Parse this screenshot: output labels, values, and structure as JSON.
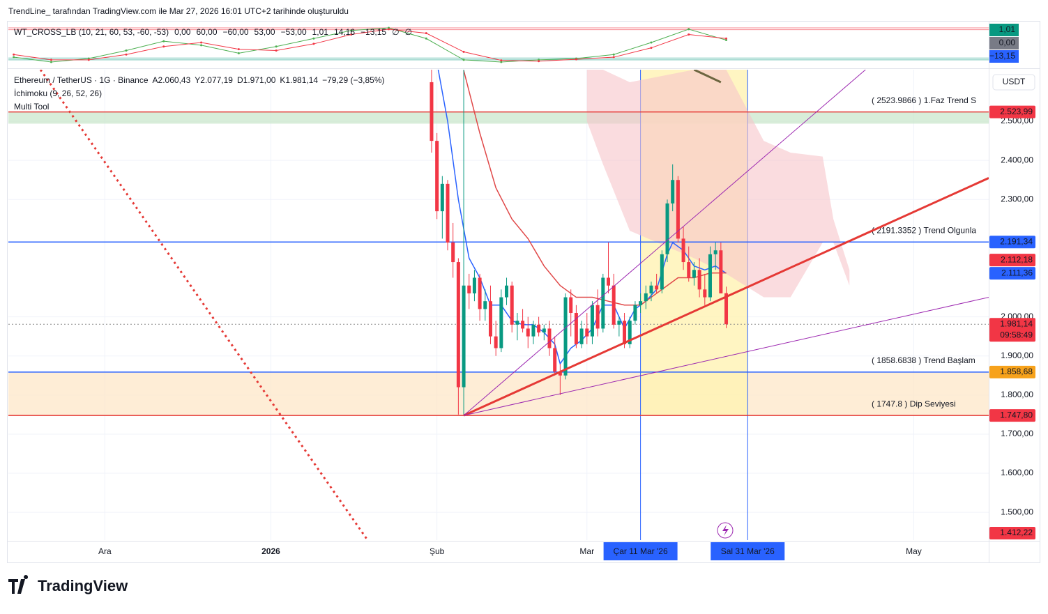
{
  "page": {
    "caption": "TrendLine_  tarafından TradingView.com ile Mar 27, 2026 16:01 UTC+2 tarihinde oluşturuldu",
    "brand": "TradingView",
    "currency": "USDT"
  },
  "chart_data": {
    "type": "candlestick",
    "legend": {
      "symbol": "Ethereum / TetherUS · 1G · Binance",
      "open": "A2.060,43",
      "high": "Y2.077,19",
      "low": "D1.971,00",
      "close": "K1.981,14",
      "change": "−79,29 (−3,85%)",
      "indicators": [
        "İchimoku (9, 26, 52, 26)",
        "Multi Tool"
      ]
    },
    "xlim": [
      "2025-11-13",
      "2026-05-15"
    ],
    "xticks": [
      {
        "value": "2025-12-01",
        "label": "Ara"
      },
      {
        "value": "2026-01-01",
        "label": "2026"
      },
      {
        "value": "2026-02-01",
        "label": "Şub"
      },
      {
        "value": "2026-03-01",
        "label": "Mar"
      },
      {
        "value": "2026-05-01",
        "label": "May"
      }
    ],
    "ylim": [
      1429,
      2632
    ],
    "yticks": [
      {
        "value": 2500,
        "label": "2.500,00"
      },
      {
        "value": 2400,
        "label": "2.400,00"
      },
      {
        "value": 2300,
        "label": "2.300,00"
      },
      {
        "value": 2000,
        "label": "2.000,00"
      },
      {
        "value": 1900,
        "label": "1.900,00"
      },
      {
        "value": 1800,
        "label": "1.800,00"
      },
      {
        "value": 1700,
        "label": "1.700,00"
      },
      {
        "value": 1600,
        "label": "1.600,00"
      },
      {
        "value": 1500,
        "label": "1.500,00"
      }
    ],
    "grid": true,
    "up_color": "#089981",
    "down_color": "#f23645",
    "x": [
      "2026-01-31",
      "2026-02-01",
      "2026-02-02",
      "2026-02-03",
      "2026-02-04",
      "2026-02-05",
      "2026-02-06",
      "2026-02-07",
      "2026-02-08",
      "2026-02-09",
      "2026-02-10",
      "2026-02-11",
      "2026-02-12",
      "2026-02-13",
      "2026-02-14",
      "2026-02-15",
      "2026-02-16",
      "2026-02-17",
      "2026-02-18",
      "2026-02-19",
      "2026-02-20",
      "2026-02-21",
      "2026-02-22",
      "2026-02-23",
      "2026-02-24",
      "2026-02-25",
      "2026-02-26",
      "2026-02-27",
      "2026-02-28",
      "2026-03-01",
      "2026-03-02",
      "2026-03-03",
      "2026-03-04",
      "2026-03-05",
      "2026-03-06",
      "2026-03-07",
      "2026-03-08",
      "2026-03-09",
      "2026-03-10",
      "2026-03-11",
      "2026-03-12",
      "2026-03-13",
      "2026-03-14",
      "2026-03-15",
      "2026-03-16",
      "2026-03-17",
      "2026-03-18",
      "2026-03-19",
      "2026-03-20",
      "2026-03-21",
      "2026-03-22",
      "2026-03-23",
      "2026-03-24",
      "2026-03-25",
      "2026-03-26",
      "2026-03-27"
    ],
    "open": [
      2600,
      2450,
      2270,
      2340,
      2190,
      2140,
      1820,
      2080,
      2060,
      2100,
      2020,
      2040,
      1950,
      1920,
      2050,
      2080,
      1980,
      1990,
      1970,
      1950,
      1980,
      1960,
      1970,
      1920,
      1860,
      1850,
      2050,
      2010,
      1930,
      1970,
      1950,
      2030,
      1970,
      2100,
      2080,
      1980,
      1990,
      1930,
      1990,
      2030,
      2040,
      2060,
      2080,
      2070,
      2160,
      2290,
      2350,
      2200,
      2140,
      2100,
      2120,
      2070,
      2050,
      2160,
      2170,
      2060.43
    ],
    "high": [
      2640,
      2470,
      2360,
      2350,
      2240,
      2150,
      2640,
      2110,
      2120,
      2110,
      2070,
      2080,
      1990,
      2070,
      2100,
      2090,
      2010,
      2020,
      2000,
      1990,
      2000,
      1980,
      1990,
      1950,
      1880,
      2060,
      2070,
      2030,
      1990,
      2010,
      2040,
      2070,
      2110,
      2190,
      2110,
      2000,
      2010,
      2000,
      2040,
      2060,
      2080,
      2090,
      2110,
      2170,
      2300,
      2390,
      2360,
      2230,
      2180,
      2140,
      2150,
      2110,
      2180,
      2190,
      2190,
      2077.19
    ],
    "low": [
      2420,
      2250,
      2200,
      2170,
      2100,
      1750,
      1750,
      2020,
      2040,
      1990,
      1990,
      1930,
      1900,
      1910,
      2030,
      1960,
      1940,
      1960,
      1920,
      1930,
      1950,
      1940,
      1900,
      1850,
      1800,
      1840,
      1950,
      1920,
      1920,
      1930,
      1930,
      1950,
      1960,
      2060,
      1970,
      1950,
      1920,
      1920,
      1980,
      2010,
      2020,
      2040,
      2060,
      2060,
      2140,
      2270,
      2190,
      2120,
      2090,
      2080,
      2050,
      2030,
      2040,
      2120,
      2060,
      1971
    ],
    "close": [
      2450,
      2270,
      2340,
      2190,
      2140,
      1820,
      2080,
      2060,
      2100,
      2020,
      2040,
      1950,
      1920,
      2050,
      2080,
      1980,
      1990,
      1970,
      1950,
      1980,
      1960,
      1970,
      1920,
      1860,
      1850,
      2050,
      2010,
      1930,
      1970,
      1950,
      2030,
      1970,
      2100,
      2080,
      1980,
      1990,
      1930,
      1990,
      2030,
      2040,
      2060,
      2080,
      2070,
      2160,
      2290,
      2350,
      2200,
      2140,
      2100,
      2120,
      2070,
      2050,
      2160,
      2170,
      2060,
      1981.14
    ],
    "lines": [
      {
        "color": "#2962ff",
        "x": [
          "2026-02-01",
          "2026-02-03",
          "2026-02-05",
          "2026-02-07",
          "2026-02-09",
          "2026-02-11",
          "2026-02-13",
          "2026-02-15",
          "2026-02-17",
          "2026-02-19",
          "2026-02-21",
          "2026-02-23",
          "2026-02-24",
          "2026-02-26",
          "2026-02-28",
          "2026-03-02",
          "2026-03-04",
          "2026-03-06",
          "2026-03-08",
          "2026-03-10",
          "2026-03-12",
          "2026-03-14",
          "2026-03-16",
          "2026-03-17",
          "2026-03-19",
          "2026-03-21",
          "2026-03-23",
          "2026-03-25",
          "2026-03-27"
        ],
        "values": [
          2650,
          2500,
          2300,
          2150,
          2100,
          2030,
          2030,
          1990,
          1980,
          1980,
          1960,
          1930,
          1880,
          1920,
          1940,
          1970,
          2030,
          2030,
          1970,
          2020,
          2040,
          2070,
          2160,
          2190,
          2170,
          2130,
          2120,
          2130,
          2111.36
        ]
      },
      {
        "color": "#e04848",
        "x": [
          "2026-02-06",
          "2026-02-09",
          "2026-02-12",
          "2026-02-15",
          "2026-02-18",
          "2026-02-21",
          "2026-02-24",
          "2026-02-27",
          "2026-03-02",
          "2026-03-05",
          "2026-03-08",
          "2026-03-11",
          "2026-03-14",
          "2026-03-16",
          "2026-03-18",
          "2026-03-21",
          "2026-03-24",
          "2026-03-27"
        ],
        "values": [
          2630,
          2470,
          2330,
          2250,
          2200,
          2130,
          2080,
          2050,
          2050,
          2040,
          2030,
          2030,
          2060,
          2080,
          2100,
          2100,
          2112,
          2112.18
        ]
      }
    ],
    "cloud": {
      "color": "#f7c5c9",
      "x": [
        "2026-03-01",
        "2026-03-04",
        "2026-03-09",
        "2026-03-21",
        "2026-03-27",
        "2026-04-03",
        "2026-04-08",
        "2026-04-14",
        "2026-04-16",
        "2026-04-19"
      ],
      "upper": [
        2632,
        2632,
        2600,
        2632,
        2632,
        2450,
        2420,
        2410,
        2250,
        2120
      ],
      "lower": [
        2500,
        2390,
        2220,
        2150,
        2110,
        2050,
        2050,
        2190,
        2190,
        2080
      ]
    },
    "zones": [
      {
        "color": "#c8e6c9",
        "border": "#2e7d32",
        "range": [
          2494,
          2523.99
        ]
      },
      {
        "color": "#fde5c4",
        "border": "#f57c00",
        "range": [
          1747.8,
          1858.68
        ]
      }
    ],
    "range_box": {
      "color": "#fff2b3",
      "border": "#2962ff",
      "x": [
        "2026-03-11",
        "2026-03-31"
      ],
      "y": [
        1747.8,
        2640
      ]
    },
    "drawings": [
      {
        "color": "#e53935",
        "width": 3,
        "x": [
          "2026-02-06",
          "2026-05-15"
        ],
        "y": [
          1747.8,
          2355
        ]
      },
      {
        "color": "#9c27b0",
        "width": 1,
        "x": [
          "2026-02-06",
          "2026-04-22"
        ],
        "y": [
          1747.8,
          2632
        ]
      },
      {
        "color": "#9c27b0",
        "width": 1,
        "x": [
          "2026-02-06",
          "2026-05-15"
        ],
        "y": [
          1747.8,
          2050
        ]
      },
      {
        "color": "#e53935",
        "width": 3,
        "dash": true,
        "x": [
          "2025-11-19",
          "2026-01-19"
        ],
        "y": [
          2632,
          1430
        ]
      },
      {
        "color": "#6d6640",
        "width": 3,
        "x": [
          "2026-03-21",
          "2026-03-26"
        ],
        "y": [
          2632,
          2600
        ]
      }
    ],
    "levels": [
      {
        "value": 2523.99,
        "color": "#e53935",
        "label": "( 2523.9866  ) 1.Faz Trend S"
      },
      {
        "value": 2191.34,
        "color": "#2962ff",
        "label": "( 2191.3352  ) Trend Olgunla"
      },
      {
        "value": 1858.68,
        "color": "#2962ff",
        "label": "( 1858.6838  ) Trend Başlam"
      },
      {
        "value": 1747.8,
        "color": "#e53935",
        "label": "( 1747.8  ) Dip Seviyesi"
      }
    ],
    "price_lines": [
      {
        "value": 2191.34,
        "color": "#2962ff"
      },
      {
        "value": 1981.14,
        "color": "#888888"
      }
    ],
    "badges": [
      {
        "value": 2523.99,
        "label": "2.523,99",
        "color": "#f23645"
      },
      {
        "value": 2191.34,
        "label": "2.191,34",
        "color": "#2962ff"
      },
      {
        "value": 2112.18,
        "label": "2.112,18",
        "color": "#f23645"
      },
      {
        "value": 2111.36,
        "label": "2.111,36",
        "color": "#2962ff"
      },
      {
        "value": 1981.14,
        "label": "1.981,14",
        "color": "#f23645",
        "countdown": "09:58:49"
      },
      {
        "value": 1858.68,
        "label": "1.858,68",
        "color": "#f7a21b"
      },
      {
        "value": 1747.8,
        "label": "1.747,80",
        "color": "#f23645"
      },
      {
        "value": 1412.22,
        "label": "1.412,22",
        "color": "#f23645"
      }
    ],
    "time_badges": [
      {
        "value": "2026-03-11",
        "label": "Çar 11 Mar '26"
      },
      {
        "value": "2026-03-31",
        "label": "Sal 31 Mar '26"
      }
    ],
    "oscillator": {
      "header": [
        {
          "text": "WT_CROSS_LB (10, 21, 60, 53, -60, -53)",
          "color": "#131722"
        },
        {
          "text": "0,00",
          "color": "#888888"
        },
        {
          "text": "60,00",
          "color": "#f23645"
        },
        {
          "text": "−60,00",
          "color": "#089981"
        },
        {
          "text": "53,00",
          "color": "#f23645"
        },
        {
          "text": "−53,00",
          "color": "#089981"
        },
        {
          "text": "1,01",
          "color": "#089981"
        },
        {
          "text": "14,16",
          "color": "#f23645"
        },
        {
          "text": "−13,15",
          "color": "#2962ff"
        },
        {
          "text": "∅",
          "color": "#131722"
        },
        {
          "text": "∅",
          "color": "#131722"
        }
      ],
      "ylim": [
        -76,
        73
      ],
      "bands": [
        {
          "value": 60,
          "color": "#f23645"
        },
        {
          "value": 53,
          "color": "#f23645"
        },
        {
          "value": -53,
          "color": "#089981"
        },
        {
          "value": -60,
          "color": "#089981"
        }
      ],
      "x": [
        "2025-11-14",
        "2025-11-21",
        "2025-11-28",
        "2025-12-05",
        "2025-12-12",
        "2025-12-19",
        "2025-12-26",
        "2026-01-02",
        "2026-01-09",
        "2026-01-16",
        "2026-01-23",
        "2026-01-30",
        "2026-02-06",
        "2026-02-13",
        "2026-02-20",
        "2026-02-27",
        "2026-03-06",
        "2026-03-13",
        "2026-03-20",
        "2026-03-27"
      ],
      "series": [
        {
          "color": "#4caf50",
          "values": [
            -50,
            -68,
            -55,
            -25,
            10,
            -5,
            -35,
            -10,
            20,
            50,
            60,
            20,
            -60,
            -68,
            -60,
            -55,
            -40,
            5,
            55,
            14.16
          ]
        },
        {
          "color": "#f23645",
          "values": [
            -40,
            -60,
            -60,
            -40,
            -10,
            5,
            -20,
            -25,
            0,
            35,
            55,
            40,
            -30,
            -62,
            -65,
            -58,
            -50,
            -15,
            35,
            20
          ]
        }
      ],
      "badges": [
        {
          "label": "1,01",
          "color": "#089981"
        },
        {
          "label": "0,00",
          "color": "#787b86"
        },
        {
          "label": "−13,15",
          "color": "#2962ff"
        }
      ]
    }
  }
}
